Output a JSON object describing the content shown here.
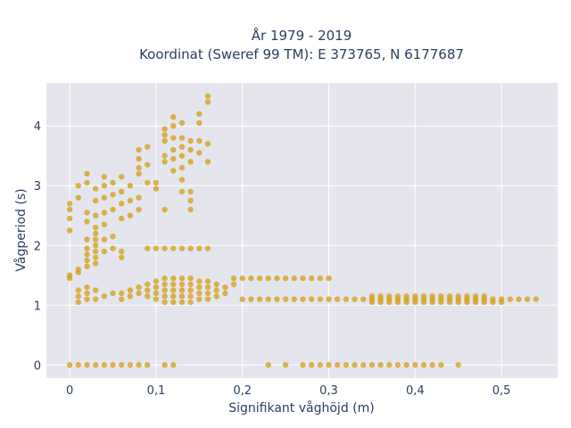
{
  "chart_data": {
    "type": "scatter",
    "title_line1": "År 1979 - 2019",
    "title_line2": "Koordinat (Sweref 99 TM): E 373765, N 6177687",
    "xlabel": "Signifikant våghöjd (m)",
    "ylabel": "Vågperiod (s)",
    "xlim": [
      -0.027,
      0.565
    ],
    "ylim": [
      -0.22,
      4.72
    ],
    "xticks": [
      0,
      0.1,
      0.2,
      0.3,
      0.4,
      0.5
    ],
    "xtick_labels": [
      "0",
      "0,1",
      "0,2",
      "0,3",
      "0,4",
      "0,5"
    ],
    "yticks": [
      0,
      1,
      2,
      3,
      4
    ],
    "ytick_labels": [
      "0",
      "1",
      "2",
      "3",
      "4"
    ],
    "grid": true,
    "marker_color": "#d4a21e",
    "plot_bg": "#e5e5ee",
    "series": [
      {
        "points": [
          [
            0,
            0
          ],
          [
            0.01,
            0
          ],
          [
            0.02,
            0
          ],
          [
            0.03,
            0
          ],
          [
            0.04,
            0
          ],
          [
            0.05,
            0
          ],
          [
            0.06,
            0
          ],
          [
            0.07,
            0
          ],
          [
            0.08,
            0
          ],
          [
            0.09,
            0
          ],
          [
            0.11,
            0
          ],
          [
            0.12,
            0
          ],
          [
            0.23,
            0
          ],
          [
            0.25,
            0
          ],
          [
            0.27,
            0
          ],
          [
            0.28,
            0
          ],
          [
            0.29,
            0
          ],
          [
            0.3,
            0
          ],
          [
            0.31,
            0
          ],
          [
            0.32,
            0
          ],
          [
            0.33,
            0
          ],
          [
            0.34,
            0
          ],
          [
            0.35,
            0
          ],
          [
            0.36,
            0
          ],
          [
            0.37,
            0
          ],
          [
            0.38,
            0
          ],
          [
            0.39,
            0
          ],
          [
            0.4,
            0
          ],
          [
            0.41,
            0
          ],
          [
            0.42,
            0
          ],
          [
            0.43,
            0
          ],
          [
            0.45,
            0
          ],
          [
            0,
            1.45
          ],
          [
            0,
            1.5
          ],
          [
            0.01,
            1.55
          ],
          [
            0.01,
            1.6
          ],
          [
            0.02,
            1.65
          ],
          [
            0.02,
            1.75
          ],
          [
            0.02,
            1.85
          ],
          [
            0.02,
            1.95
          ],
          [
            0.02,
            2.1
          ],
          [
            0.03,
            1.7
          ],
          [
            0.03,
            1.8
          ],
          [
            0.03,
            1.9
          ],
          [
            0.03,
            2.0
          ],
          [
            0.03,
            2.1
          ],
          [
            0.03,
            2.2
          ],
          [
            0.03,
            2.3
          ],
          [
            0.04,
            1.9
          ],
          [
            0.04,
            2.1
          ],
          [
            0.05,
            1.95
          ],
          [
            0.05,
            2.15
          ],
          [
            0.06,
            1.8
          ],
          [
            0.06,
            1.9
          ],
          [
            0,
            2.25
          ],
          [
            0,
            2.45
          ],
          [
            0,
            2.6
          ],
          [
            0,
            2.7
          ],
          [
            0.01,
            2.8
          ],
          [
            0.01,
            3.0
          ],
          [
            0.02,
            2.4
          ],
          [
            0.02,
            2.55
          ],
          [
            0.02,
            3.05
          ],
          [
            0.02,
            3.2
          ],
          [
            0.03,
            2.5
          ],
          [
            0.03,
            2.75
          ],
          [
            0.03,
            2.95
          ],
          [
            0.04,
            2.35
          ],
          [
            0.04,
            2.55
          ],
          [
            0.04,
            2.8
          ],
          [
            0.04,
            3.0
          ],
          [
            0.04,
            3.15
          ],
          [
            0.05,
            2.6
          ],
          [
            0.05,
            2.85
          ],
          [
            0.05,
            3.05
          ],
          [
            0.06,
            2.45
          ],
          [
            0.06,
            2.7
          ],
          [
            0.06,
            2.9
          ],
          [
            0.06,
            3.15
          ],
          [
            0.07,
            2.5
          ],
          [
            0.07,
            2.75
          ],
          [
            0.07,
            3.0
          ],
          [
            0.08,
            2.6
          ],
          [
            0.08,
            2.8
          ],
          [
            0.08,
            3.2
          ],
          [
            0.08,
            3.3
          ],
          [
            0.08,
            3.45
          ],
          [
            0.08,
            3.6
          ],
          [
            0.09,
            3.05
          ],
          [
            0.09,
            3.35
          ],
          [
            0.09,
            3.65
          ],
          [
            0.1,
            2.95
          ],
          [
            0.1,
            3.05
          ],
          [
            0.11,
            2.6
          ],
          [
            0.11,
            3.4
          ],
          [
            0.11,
            3.5
          ],
          [
            0.11,
            3.75
          ],
          [
            0.11,
            3.85
          ],
          [
            0.11,
            3.95
          ],
          [
            0.12,
            3.25
          ],
          [
            0.12,
            3.45
          ],
          [
            0.12,
            3.6
          ],
          [
            0.12,
            3.8
          ],
          [
            0.12,
            4.0
          ],
          [
            0.12,
            4.15
          ],
          [
            0.13,
            2.9
          ],
          [
            0.13,
            3.1
          ],
          [
            0.13,
            3.3
          ],
          [
            0.13,
            3.5
          ],
          [
            0.13,
            3.65
          ],
          [
            0.13,
            3.8
          ],
          [
            0.13,
            4.05
          ],
          [
            0.14,
            2.6
          ],
          [
            0.14,
            2.75
          ],
          [
            0.14,
            2.9
          ],
          [
            0.14,
            3.4
          ],
          [
            0.14,
            3.6
          ],
          [
            0.14,
            3.75
          ],
          [
            0.15,
            3.55
          ],
          [
            0.15,
            3.75
          ],
          [
            0.15,
            4.05
          ],
          [
            0.15,
            4.2
          ],
          [
            0.16,
            3.4
          ],
          [
            0.16,
            3.7
          ],
          [
            0.16,
            4.4
          ],
          [
            0.16,
            4.5
          ],
          [
            0.09,
            1.95
          ],
          [
            0.1,
            1.95
          ],
          [
            0.11,
            1.95
          ],
          [
            0.12,
            1.95
          ],
          [
            0.13,
            1.95
          ],
          [
            0.14,
            1.95
          ],
          [
            0.15,
            1.95
          ],
          [
            0.16,
            1.95
          ],
          [
            0.01,
            1.05
          ],
          [
            0.01,
            1.15
          ],
          [
            0.01,
            1.25
          ],
          [
            0.02,
            1.1
          ],
          [
            0.02,
            1.2
          ],
          [
            0.02,
            1.3
          ],
          [
            0.03,
            1.1
          ],
          [
            0.03,
            1.25
          ],
          [
            0.04,
            1.15
          ],
          [
            0.05,
            1.2
          ],
          [
            0.06,
            1.1
          ],
          [
            0.06,
            1.2
          ],
          [
            0.07,
            1.15
          ],
          [
            0.07,
            1.25
          ],
          [
            0.08,
            1.2
          ],
          [
            0.08,
            1.3
          ],
          [
            0.09,
            1.15
          ],
          [
            0.09,
            1.25
          ],
          [
            0.09,
            1.35
          ],
          [
            0.1,
            1.1
          ],
          [
            0.1,
            1.2
          ],
          [
            0.1,
            1.3
          ],
          [
            0.1,
            1.4
          ],
          [
            0.11,
            1.05
          ],
          [
            0.11,
            1.15
          ],
          [
            0.11,
            1.25
          ],
          [
            0.11,
            1.35
          ],
          [
            0.11,
            1.45
          ],
          [
            0.12,
            1.05
          ],
          [
            0.12,
            1.15
          ],
          [
            0.12,
            1.25
          ],
          [
            0.12,
            1.35
          ],
          [
            0.12,
            1.45
          ],
          [
            0.13,
            1.05
          ],
          [
            0.13,
            1.15
          ],
          [
            0.13,
            1.25
          ],
          [
            0.13,
            1.35
          ],
          [
            0.13,
            1.45
          ],
          [
            0.14,
            1.05
          ],
          [
            0.14,
            1.15
          ],
          [
            0.14,
            1.25
          ],
          [
            0.14,
            1.35
          ],
          [
            0.14,
            1.45
          ],
          [
            0.15,
            1.1
          ],
          [
            0.15,
            1.2
          ],
          [
            0.15,
            1.3
          ],
          [
            0.15,
            1.4
          ],
          [
            0.16,
            1.1
          ],
          [
            0.16,
            1.2
          ],
          [
            0.16,
            1.3
          ],
          [
            0.16,
            1.4
          ],
          [
            0.17,
            1.15
          ],
          [
            0.17,
            1.25
          ],
          [
            0.17,
            1.35
          ],
          [
            0.18,
            1.2
          ],
          [
            0.18,
            1.3
          ],
          [
            0.19,
            1.35
          ],
          [
            0.19,
            1.45
          ],
          [
            0.2,
            1.1
          ],
          [
            0.21,
            1.1
          ],
          [
            0.22,
            1.1
          ],
          [
            0.23,
            1.1
          ],
          [
            0.24,
            1.1
          ],
          [
            0.25,
            1.1
          ],
          [
            0.26,
            1.1
          ],
          [
            0.27,
            1.1
          ],
          [
            0.28,
            1.1
          ],
          [
            0.29,
            1.1
          ],
          [
            0.3,
            1.1
          ],
          [
            0.31,
            1.1
          ],
          [
            0.32,
            1.1
          ],
          [
            0.33,
            1.1
          ],
          [
            0.34,
            1.1
          ],
          [
            0.35,
            1.1
          ],
          [
            0.36,
            1.1
          ],
          [
            0.37,
            1.1
          ],
          [
            0.38,
            1.1
          ],
          [
            0.39,
            1.1
          ],
          [
            0.4,
            1.1
          ],
          [
            0.41,
            1.1
          ],
          [
            0.42,
            1.1
          ],
          [
            0.43,
            1.1
          ],
          [
            0.44,
            1.1
          ],
          [
            0.45,
            1.1
          ],
          [
            0.46,
            1.1
          ],
          [
            0.47,
            1.1
          ],
          [
            0.48,
            1.1
          ],
          [
            0.49,
            1.1
          ],
          [
            0.5,
            1.1
          ],
          [
            0.51,
            1.1
          ],
          [
            0.52,
            1.1
          ],
          [
            0.53,
            1.1
          ],
          [
            0.54,
            1.1
          ],
          [
            0.2,
            1.45
          ],
          [
            0.21,
            1.45
          ],
          [
            0.22,
            1.45
          ],
          [
            0.23,
            1.45
          ],
          [
            0.24,
            1.45
          ],
          [
            0.25,
            1.45
          ],
          [
            0.26,
            1.45
          ],
          [
            0.27,
            1.45
          ],
          [
            0.28,
            1.45
          ],
          [
            0.29,
            1.45
          ],
          [
            0.3,
            1.45
          ],
          [
            0.35,
            1.15
          ],
          [
            0.36,
            1.15
          ],
          [
            0.37,
            1.15
          ],
          [
            0.38,
            1.15
          ],
          [
            0.39,
            1.15
          ],
          [
            0.4,
            1.15
          ],
          [
            0.41,
            1.15
          ],
          [
            0.42,
            1.15
          ],
          [
            0.43,
            1.15
          ],
          [
            0.44,
            1.15
          ],
          [
            0.45,
            1.15
          ],
          [
            0.46,
            1.15
          ],
          [
            0.47,
            1.15
          ],
          [
            0.48,
            1.15
          ],
          [
            0.35,
            1.05
          ],
          [
            0.36,
            1.05
          ],
          [
            0.37,
            1.05
          ],
          [
            0.38,
            1.05
          ],
          [
            0.39,
            1.05
          ],
          [
            0.4,
            1.05
          ],
          [
            0.41,
            1.05
          ],
          [
            0.42,
            1.05
          ],
          [
            0.43,
            1.05
          ],
          [
            0.44,
            1.05
          ],
          [
            0.45,
            1.05
          ],
          [
            0.46,
            1.05
          ],
          [
            0.47,
            1.05
          ],
          [
            0.48,
            1.05
          ],
          [
            0.49,
            1.05
          ],
          [
            0.5,
            1.05
          ]
        ]
      }
    ]
  }
}
